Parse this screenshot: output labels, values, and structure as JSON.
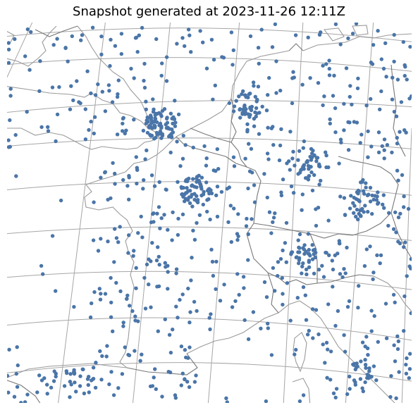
{
  "title": "Snapshot generated at 2023-11-26 12:11Z",
  "colors": {
    "station": "#4a75a8",
    "graticule": "#a6a6a6",
    "coastline": "#9a9a9a",
    "border": "#777777",
    "background": "#ffffff"
  },
  "map": {
    "projection": "conic (Lambert-style)",
    "region": "Western Europe (UK, France, Benelux, Germany, Switzerland, N. Italy)",
    "graticule": true,
    "marker": "filled circle",
    "marker_description": "weather observation stations"
  }
}
